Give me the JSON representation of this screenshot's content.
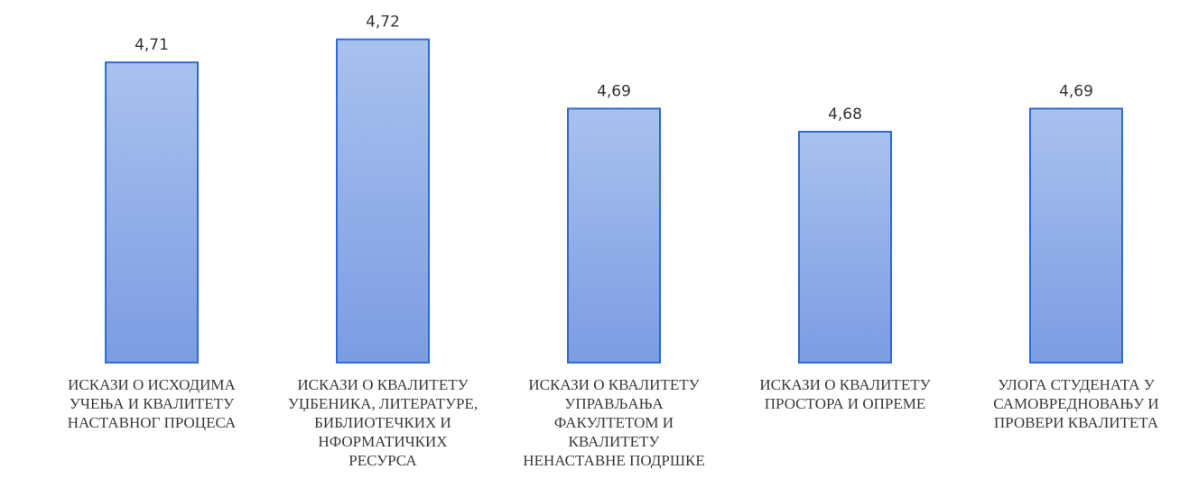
{
  "chart_data": {
    "type": "bar",
    "categories": [
      [
        "ИСКАЗИ О ИСХОДИМА",
        "УЧЕЊА И КВАЛИТЕТУ",
        "НАСТАВНОГ ПРОЦЕСА"
      ],
      [
        "ИСКАЗИ О КВАЛИТЕТУ",
        "УЏБЕНИКА, ЛИТЕРАТУРЕ,",
        "БИБЛИОТЕЧКИХ И",
        "НФОРМАТИЧКИХ",
        "РЕСУРСА"
      ],
      [
        "ИСКАЗИ О КВАЛИТЕТУ",
        "УПРАВЉАЊА",
        "ФАКУЛТЕТОМ И",
        "КВАЛИТЕТУ",
        "НЕНАСТАВНЕ ПОДРШКЕ"
      ],
      [
        "ИСКАЗИ О КВАЛИТЕТУ",
        "ПРОСТОРА И ОПРЕМЕ"
      ],
      [
        "УЛОГА СТУДЕНАТА У",
        "САМОВРЕДНОВАЊУ И",
        "ПРОВЕРИ КВАЛИТЕТА"
      ]
    ],
    "values": [
      4.71,
      4.72,
      4.69,
      4.68,
      4.69
    ],
    "value_labels": [
      "4,71",
      "4,72",
      "4,69",
      "4,68",
      "4,69"
    ],
    "ylim": [
      4.58,
      4.73
    ],
    "grid": false,
    "colors": {
      "bar_top": "#a9c1ee",
      "bar_bottom": "#7c9ce3",
      "bar_border": "#2f6bd6"
    }
  }
}
